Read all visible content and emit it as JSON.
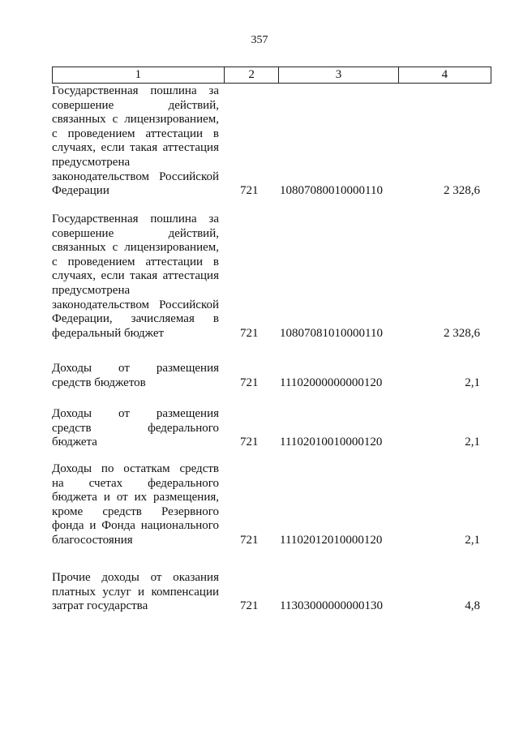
{
  "page_number": "357",
  "table": {
    "headers": [
      "1",
      "2",
      "3",
      "4"
    ],
    "rows": [
      {
        "lines": [
          "Государственная пошлина за",
          "совершение действий,",
          "связанных с лицензированием,",
          "с проведением аттестации в",
          "случаях, если такая аттестация",
          "предусмотрена",
          "законодательством Российской",
          "Федерации"
        ],
        "col2": "721",
        "col3": "10807080010000110",
        "col4": "2 328,6"
      },
      {
        "lines": [
          "Государственная пошлина за",
          "совершение действий,",
          "связанных с лицензированием,",
          "с проведением аттестации в",
          "случаях, если такая аттестация",
          "предусмотрена",
          "законодательством Российской",
          "Федерации, зачисляемая в",
          "федеральный бюджет"
        ],
        "col2": "721",
        "col3": "10807081010000110",
        "col4": "2 328,6"
      },
      {
        "lines": [
          "Доходы от размещения",
          "средств бюджетов"
        ],
        "col2": "721",
        "col3": "11102000000000120",
        "col4": "2,1"
      },
      {
        "lines": [
          "Доходы от размещения",
          "средств федерального",
          "бюджета"
        ],
        "col2": "721",
        "col3": "11102010010000120",
        "col4": "2,1"
      },
      {
        "lines": [
          "Доходы по остаткам средств",
          "на счетах федерального",
          "бюджета и от их размещения,",
          "кроме средств Резервного",
          "фонда и Фонда национального",
          "благосостояния"
        ],
        "col2": "721",
        "col3": "11102012010000120",
        "col4": "2,1"
      },
      {
        "lines": [
          "Прочие доходы от оказания",
          "платных услуг и компенсации",
          "затрат государства"
        ],
        "col2": "721",
        "col3": "11303000000000130",
        "col4": "4,8"
      }
    ]
  }
}
